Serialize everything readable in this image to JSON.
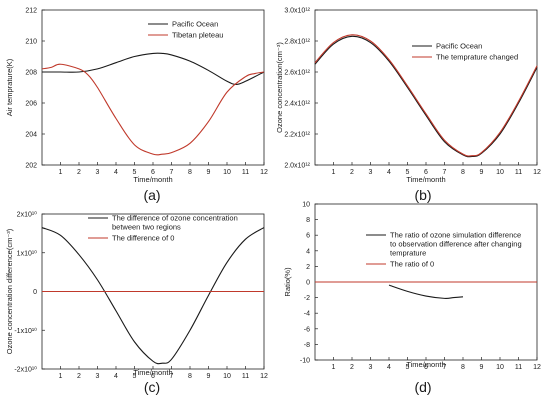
{
  "colors": {
    "black": "#1a1a1a",
    "red": "#c0392b",
    "axis": "#222222"
  },
  "chart_data": [
    {
      "type": "line",
      "panel_label": "(a)",
      "xlabel": "Time/month",
      "ylabel": "Air temprature(K)",
      "xlim": [
        0,
        12
      ],
      "ylim": [
        202,
        212
      ],
      "x_ticks": [
        "1",
        "2",
        "3",
        "4",
        "5",
        "6",
        "7",
        "8",
        "9",
        "10",
        "11",
        "12"
      ],
      "y_ticks": [
        "202",
        "204",
        "206",
        "208",
        "210",
        "212"
      ],
      "legend": "top-right",
      "series": [
        {
          "name": "Pacific Ocean",
          "color": "#1a1a1a",
          "x": [
            0,
            1,
            2,
            3,
            4,
            5,
            6,
            6.5,
            7,
            8,
            9,
            10,
            10.5,
            11,
            12
          ],
          "y": [
            208.0,
            208.0,
            208.0,
            208.2,
            208.6,
            209.0,
            209.2,
            209.2,
            209.1,
            208.7,
            208.1,
            207.4,
            207.2,
            207.4,
            208.0
          ]
        },
        {
          "name": "Tibetan pleteau",
          "color": "#c0392b",
          "x": [
            0,
            0.5,
            1,
            2,
            2.5,
            3,
            4,
            5,
            6,
            6.5,
            7,
            8,
            9,
            10,
            11,
            11.5,
            12
          ],
          "y": [
            208.2,
            208.3,
            208.5,
            208.2,
            207.8,
            207.0,
            205.0,
            203.3,
            202.7,
            202.7,
            202.8,
            203.4,
            204.8,
            206.7,
            207.7,
            207.9,
            208.0
          ]
        }
      ]
    },
    {
      "type": "line",
      "panel_label": "(b)",
      "xlabel": "Time/month",
      "ylabel": "Ozone concentration(cm⁻³)",
      "xlim": [
        0,
        12
      ],
      "ylim": [
        2000000000000.0,
        3000000000000.0
      ],
      "x_ticks": [
        "1",
        "2",
        "3",
        "4",
        "5",
        "6",
        "7",
        "8",
        "9",
        "10",
        "11",
        "12"
      ],
      "y_ticks": [
        "2.0x10¹²",
        "2.2x10¹²",
        "2.4x10¹²",
        "2.6x10¹²",
        "2.8x10¹²",
        "3.0x10¹²"
      ],
      "legend": "top-right",
      "series": [
        {
          "name": "Pacific Ocean",
          "color": "#1a1a1a",
          "x": [
            0,
            1,
            2,
            3,
            4,
            5,
            6,
            7,
            8,
            8.5,
            9,
            10,
            11,
            12
          ],
          "y": [
            2650000000000.0,
            2780000000000.0,
            2830000000000.0,
            2790000000000.0,
            2670000000000.0,
            2500000000000.0,
            2320000000000.0,
            2150000000000.0,
            2065000000000.0,
            2055000000000.0,
            2075000000000.0,
            2200000000000.0,
            2400000000000.0,
            2630000000000.0
          ]
        },
        {
          "name": "The temprature changed",
          "color": "#c0392b",
          "x": [
            0,
            1,
            2,
            3,
            4,
            5,
            6,
            7,
            8,
            8.5,
            9,
            10,
            11,
            12
          ],
          "y": [
            2660000000000.0,
            2790000000000.0,
            2840000000000.0,
            2800000000000.0,
            2680000000000.0,
            2510000000000.0,
            2330000000000.0,
            2160000000000.0,
            2070000000000.0,
            2060000000000.0,
            2080000000000.0,
            2210000000000.0,
            2410000000000.0,
            2640000000000.0
          ]
        }
      ]
    },
    {
      "type": "line",
      "panel_label": "(c)",
      "xlabel": "Time/month",
      "ylabel": "Ozone concentration difference(cm⁻³)",
      "xlim": [
        0,
        12
      ],
      "ylim": [
        -20000000000.0,
        20000000000.0
      ],
      "x_ticks": [
        "1",
        "2",
        "3",
        "4",
        "5",
        "6",
        "7",
        "8",
        "9",
        "10",
        "11",
        "12"
      ],
      "y_ticks": [
        "-2x10¹⁰",
        "-1x10¹⁰",
        "0",
        "1x10¹⁰",
        "2x10¹⁰"
      ],
      "legend": "top-right",
      "series": [
        {
          "name": "The difference of ozone concentration between two regions",
          "color": "#1a1a1a",
          "x": [
            0,
            1,
            2,
            3,
            4,
            5,
            6,
            6.5,
            7,
            8,
            9,
            10,
            11,
            12
          ],
          "y": [
            16500000000.0,
            14500000000.0,
            9500000000.0,
            3000000000.0,
            -5000000000.0,
            -13000000000.0,
            -18000000000.0,
            -18500000000.0,
            -17500000000.0,
            -10000000000.0,
            -1000000000.0,
            7500000000.0,
            13500000000.0,
            16500000000.0
          ]
        },
        {
          "name": "The difference of 0",
          "color": "#c0392b",
          "x": [
            0,
            12
          ],
          "y": [
            0,
            0
          ]
        }
      ]
    },
    {
      "type": "line",
      "panel_label": "(d)",
      "xlabel": "Time/month",
      "ylabel": "Ratio(%)",
      "xlim": [
        0,
        12
      ],
      "ylim": [
        -10,
        10
      ],
      "x_ticks": [
        "1",
        "2",
        "3",
        "4",
        "5",
        "6",
        "7",
        "8",
        "9",
        "10",
        "11",
        "12"
      ],
      "y_ticks": [
        "-10",
        "-8",
        "-6",
        "-4",
        "-2",
        "0",
        "2",
        "4",
        "6",
        "8",
        "10"
      ],
      "legend": "top-right",
      "series": [
        {
          "name": "The ratio of ozone simulation difference to observation difference after changing temprature",
          "color": "#1a1a1a",
          "x": [
            4,
            5,
            6,
            7,
            7.5,
            8
          ],
          "y": [
            -0.4,
            -1.2,
            -1.8,
            -2.1,
            -2.0,
            -1.9
          ]
        },
        {
          "name": "The ratio of 0",
          "color": "#c0392b",
          "x": [
            0,
            12
          ],
          "y": [
            0,
            0
          ]
        }
      ]
    }
  ]
}
